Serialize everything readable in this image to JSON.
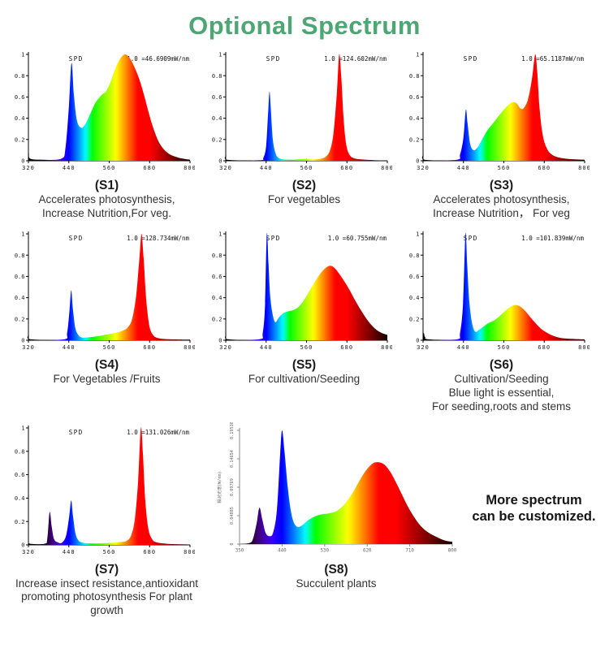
{
  "title": "Optional Spectrum",
  "title_color": "#4da673",
  "more_text": {
    "line1": "More spectrum",
    "line2": "can be customized."
  },
  "chart_data": [
    {
      "id": "S1",
      "type": "area",
      "spd_label": "SPD",
      "scale_label": "1.0 =46.6909mW/nm",
      "xlabel": "",
      "ylabel": "",
      "xlim": [
        320,
        800
      ],
      "ylim": [
        0,
        1
      ],
      "xticks": [
        320,
        440,
        560,
        680,
        800
      ],
      "yticks": [
        0,
        0.2,
        0.4,
        0.6,
        0.8,
        1
      ],
      "ytick_labels": [
        "0",
        "0.2",
        "0.4",
        "0.6",
        "0.8",
        "1"
      ],
      "points": [
        [
          320,
          0
        ],
        [
          322,
          0.07
        ],
        [
          325,
          0.02
        ],
        [
          360,
          0.01
        ],
        [
          418,
          0.02
        ],
        [
          430,
          0.12
        ],
        [
          440,
          0.5
        ],
        [
          448,
          0.92
        ],
        [
          455,
          0.62
        ],
        [
          464,
          0.38
        ],
        [
          477,
          0.31
        ],
        [
          490,
          0.35
        ],
        [
          505,
          0.45
        ],
        [
          520,
          0.55
        ],
        [
          538,
          0.62
        ],
        [
          552,
          0.66
        ],
        [
          565,
          0.75
        ],
        [
          580,
          0.88
        ],
        [
          595,
          0.97
        ],
        [
          607,
          1.0
        ],
        [
          620,
          0.97
        ],
        [
          635,
          0.88
        ],
        [
          650,
          0.76
        ],
        [
          665,
          0.6
        ],
        [
          680,
          0.42
        ],
        [
          695,
          0.27
        ],
        [
          712,
          0.15
        ],
        [
          735,
          0.07
        ],
        [
          765,
          0.03
        ],
        [
          800,
          0.01
        ]
      ],
      "caption_title": "(S1)",
      "caption_lines": [
        "Accelerates photosynthesis,",
        "Increase Nutrition,For veg."
      ]
    },
    {
      "id": "S2",
      "type": "area",
      "spd_label": "SPD",
      "scale_label": "1.0 =124.602mW/nm",
      "xlim": [
        320,
        800
      ],
      "ylim": [
        0,
        1
      ],
      "xticks": [
        320,
        440,
        560,
        680,
        800
      ],
      "yticks": [
        0,
        0.2,
        0.4,
        0.6,
        0.8,
        1
      ],
      "ytick_labels": [
        "0",
        "0.2",
        "0.4",
        "0.6",
        "0.8",
        "1"
      ],
      "points": [
        [
          320,
          0
        ],
        [
          322,
          0.05
        ],
        [
          325,
          0.01
        ],
        [
          420,
          0.005
        ],
        [
          432,
          0.03
        ],
        [
          440,
          0.14
        ],
        [
          446,
          0.45
        ],
        [
          450,
          0.65
        ],
        [
          454,
          0.48
        ],
        [
          460,
          0.2
        ],
        [
          468,
          0.07
        ],
        [
          478,
          0.025
        ],
        [
          495,
          0.012
        ],
        [
          520,
          0.01
        ],
        [
          545,
          0.015
        ],
        [
          560,
          0.02
        ],
        [
          572,
          0.012
        ],
        [
          590,
          0.015
        ],
        [
          605,
          0.02
        ],
        [
          618,
          0.04
        ],
        [
          630,
          0.1
        ],
        [
          640,
          0.26
        ],
        [
          650,
          0.63
        ],
        [
          657,
          1.0
        ],
        [
          663,
          0.8
        ],
        [
          670,
          0.4
        ],
        [
          678,
          0.15
        ],
        [
          688,
          0.055
        ],
        [
          700,
          0.025
        ],
        [
          725,
          0.012
        ],
        [
          760,
          0.006
        ],
        [
          800,
          0.003
        ]
      ],
      "caption_title": "(S2)",
      "caption_lines": [
        "For vegetables"
      ]
    },
    {
      "id": "S3",
      "type": "area",
      "spd_label": "SPD",
      "scale_label": "1.0 =65.1187mW/nm",
      "xlim": [
        320,
        800
      ],
      "ylim": [
        0,
        1
      ],
      "xticks": [
        320,
        440,
        560,
        680,
        800
      ],
      "yticks": [
        0,
        0.2,
        0.4,
        0.6,
        0.8,
        1
      ],
      "ytick_labels": [
        "0",
        "0.2",
        "0.4",
        "0.6",
        "0.8",
        "1"
      ],
      "points": [
        [
          320,
          0
        ],
        [
          322,
          0.06
        ],
        [
          325,
          0.01
        ],
        [
          420,
          0.01
        ],
        [
          430,
          0.06
        ],
        [
          440,
          0.22
        ],
        [
          447,
          0.48
        ],
        [
          452,
          0.36
        ],
        [
          460,
          0.16
        ],
        [
          470,
          0.1
        ],
        [
          483,
          0.13
        ],
        [
          497,
          0.21
        ],
        [
          512,
          0.29
        ],
        [
          527,
          0.35
        ],
        [
          542,
          0.41
        ],
        [
          557,
          0.47
        ],
        [
          572,
          0.52
        ],
        [
          586,
          0.55
        ],
        [
          598,
          0.54
        ],
        [
          610,
          0.49
        ],
        [
          620,
          0.5
        ],
        [
          632,
          0.58
        ],
        [
          644,
          0.78
        ],
        [
          653,
          1.0
        ],
        [
          659,
          0.85
        ],
        [
          666,
          0.5
        ],
        [
          675,
          0.25
        ],
        [
          687,
          0.12
        ],
        [
          702,
          0.06
        ],
        [
          725,
          0.03
        ],
        [
          760,
          0.015
        ],
        [
          800,
          0.01
        ]
      ],
      "caption_title": "(S3)",
      "caption_lines": [
        "Accelerates photosynthesis,",
        "Increase Nutrition， For veg"
      ]
    },
    {
      "id": "S4",
      "type": "area",
      "spd_label": "SPD",
      "scale_label": "1.0 =128.734mW/nm",
      "xlim": [
        320,
        800
      ],
      "ylim": [
        0,
        1
      ],
      "xticks": [
        320,
        440,
        560,
        680,
        800
      ],
      "yticks": [
        0,
        0.2,
        0.4,
        0.6,
        0.8,
        1
      ],
      "ytick_labels": [
        "0",
        "0.2",
        "0.4",
        "0.6",
        "0.8",
        "1"
      ],
      "points": [
        [
          320,
          0
        ],
        [
          322,
          0.05
        ],
        [
          325,
          0.01
        ],
        [
          425,
          0.008
        ],
        [
          435,
          0.07
        ],
        [
          442,
          0.28
        ],
        [
          447,
          0.47
        ],
        [
          452,
          0.3
        ],
        [
          459,
          0.12
        ],
        [
          468,
          0.05
        ],
        [
          480,
          0.025
        ],
        [
          505,
          0.03
        ],
        [
          530,
          0.04
        ],
        [
          555,
          0.055
        ],
        [
          580,
          0.07
        ],
        [
          600,
          0.09
        ],
        [
          615,
          0.12
        ],
        [
          628,
          0.2
        ],
        [
          640,
          0.42
        ],
        [
          650,
          0.78
        ],
        [
          656,
          1.0
        ],
        [
          662,
          0.78
        ],
        [
          670,
          0.38
        ],
        [
          679,
          0.14
        ],
        [
          690,
          0.05
        ],
        [
          705,
          0.02
        ],
        [
          735,
          0.01
        ],
        [
          800,
          0.005
        ]
      ],
      "caption_title": "(S4)",
      "caption_lines": [
        "For Vegetables /Fruits"
      ]
    },
    {
      "id": "S5",
      "type": "area",
      "spd_label": "SPD",
      "scale_label": "1.0 =60.755mW/nm",
      "xlim": [
        320,
        800
      ],
      "ylim": [
        0,
        1
      ],
      "xticks": [
        320,
        440,
        560,
        680,
        800
      ],
      "yticks": [
        0,
        0.2,
        0.4,
        0.6,
        0.8,
        1
      ],
      "ytick_labels": [
        "0",
        "0.2",
        "0.4",
        "0.6",
        "0.8",
        "1"
      ],
      "points": [
        [
          320,
          0
        ],
        [
          322,
          0.05
        ],
        [
          326,
          0.01
        ],
        [
          420,
          0.01
        ],
        [
          430,
          0.07
        ],
        [
          437,
          0.35
        ],
        [
          442,
          1.0
        ],
        [
          447,
          0.72
        ],
        [
          452,
          0.42
        ],
        [
          459,
          0.25
        ],
        [
          467,
          0.17
        ],
        [
          477,
          0.21
        ],
        [
          489,
          0.25
        ],
        [
          503,
          0.27
        ],
        [
          518,
          0.28
        ],
        [
          535,
          0.31
        ],
        [
          553,
          0.38
        ],
        [
          570,
          0.47
        ],
        [
          587,
          0.56
        ],
        [
          602,
          0.63
        ],
        [
          617,
          0.68
        ],
        [
          630,
          0.7
        ],
        [
          643,
          0.68
        ],
        [
          658,
          0.62
        ],
        [
          673,
          0.55
        ],
        [
          690,
          0.46
        ],
        [
          707,
          0.36
        ],
        [
          724,
          0.27
        ],
        [
          743,
          0.18
        ],
        [
          763,
          0.11
        ],
        [
          782,
          0.07
        ],
        [
          800,
          0.05
        ]
      ],
      "caption_title": "(S5)",
      "caption_lines": [
        "For cultivation/Seeding"
      ]
    },
    {
      "id": "S6",
      "type": "area",
      "spd_label": "SPD",
      "scale_label": "1.0 =101.839mW/nm",
      "xlim": [
        320,
        800
      ],
      "ylim": [
        0,
        1
      ],
      "xticks": [
        320,
        440,
        560,
        680,
        800
      ],
      "yticks": [
        0,
        0.2,
        0.4,
        0.6,
        0.8,
        1
      ],
      "ytick_labels": [
        "0",
        "0.2",
        "0.4",
        "0.6",
        "0.8",
        "1"
      ],
      "points": [
        [
          320,
          0
        ],
        [
          322,
          0.07
        ],
        [
          326,
          0.02
        ],
        [
          329,
          0.04
        ],
        [
          333,
          0.01
        ],
        [
          420,
          0.008
        ],
        [
          430,
          0.07
        ],
        [
          439,
          0.35
        ],
        [
          446,
          1.0
        ],
        [
          451,
          0.72
        ],
        [
          457,
          0.38
        ],
        [
          465,
          0.17
        ],
        [
          475,
          0.08
        ],
        [
          487,
          0.1
        ],
        [
          500,
          0.13
        ],
        [
          514,
          0.16
        ],
        [
          528,
          0.18
        ],
        [
          545,
          0.22
        ],
        [
          562,
          0.27
        ],
        [
          578,
          0.31
        ],
        [
          593,
          0.33
        ],
        [
          607,
          0.32
        ],
        [
          622,
          0.28
        ],
        [
          638,
          0.22
        ],
        [
          654,
          0.16
        ],
        [
          670,
          0.11
        ],
        [
          688,
          0.07
        ],
        [
          708,
          0.04
        ],
        [
          732,
          0.02
        ],
        [
          765,
          0.012
        ],
        [
          800,
          0.008
        ]
      ],
      "caption_title": "(S6)",
      "caption_lines": [
        "Cultivation/Seeding",
        "Blue light is essential,",
        "For seeding,roots and stems"
      ]
    },
    {
      "id": "S7",
      "type": "area",
      "spd_label": "SPD",
      "scale_label": "1.0 =131.026mW/nm",
      "xlim": [
        320,
        800
      ],
      "ylim": [
        0,
        1
      ],
      "xticks": [
        320,
        440,
        560,
        680,
        800
      ],
      "yticks": [
        0,
        0.2,
        0.4,
        0.6,
        0.8,
        1
      ],
      "ytick_labels": [
        "0",
        "0.2",
        "0.4",
        "0.6",
        "0.8",
        "1"
      ],
      "points": [
        [
          320,
          0.004
        ],
        [
          322,
          0.03
        ],
        [
          325,
          0.01
        ],
        [
          368,
          0.01
        ],
        [
          376,
          0.05
        ],
        [
          383,
          0.28
        ],
        [
          389,
          0.16
        ],
        [
          396,
          0.05
        ],
        [
          408,
          0.02
        ],
        [
          420,
          0.02
        ],
        [
          432,
          0.08
        ],
        [
          441,
          0.24
        ],
        [
          447,
          0.38
        ],
        [
          452,
          0.26
        ],
        [
          459,
          0.11
        ],
        [
          468,
          0.04
        ],
        [
          482,
          0.018
        ],
        [
          505,
          0.012
        ],
        [
          530,
          0.012
        ],
        [
          555,
          0.015
        ],
        [
          578,
          0.02
        ],
        [
          598,
          0.025
        ],
        [
          612,
          0.035
        ],
        [
          625,
          0.08
        ],
        [
          636,
          0.22
        ],
        [
          646,
          0.55
        ],
        [
          654,
          1.0
        ],
        [
          660,
          0.78
        ],
        [
          667,
          0.38
        ],
        [
          676,
          0.14
        ],
        [
          687,
          0.05
        ],
        [
          700,
          0.022
        ],
        [
          730,
          0.01
        ],
        [
          770,
          0.005
        ],
        [
          800,
          0.003
        ]
      ],
      "caption_title": "(S7)",
      "caption_lines": [
        "Increase insect resistance,antioxidant",
        "promoting photosynthesis For plant growth"
      ]
    },
    {
      "id": "S8",
      "type": "area",
      "ylabel": "相对光谱(W/nm)",
      "ytick_rotated": true,
      "axis_color": "#8a8a8a",
      "tick_color": "#666666",
      "xlim": [
        350,
        800
      ],
      "ylim": [
        0,
        0.19538
      ],
      "xticks": [
        350,
        440,
        530,
        620,
        710,
        800
      ],
      "yticks": [
        0,
        0.25,
        0.5,
        0.75,
        1
      ],
      "ytick_labels": [
        "0",
        "0.04885",
        "0.09769",
        "0.14654",
        "0.19538"
      ],
      "points": [
        [
          350,
          0
        ],
        [
          370,
          0.008
        ],
        [
          378,
          0.04
        ],
        [
          386,
          0.18
        ],
        [
          392,
          0.32
        ],
        [
          398,
          0.22
        ],
        [
          405,
          0.1
        ],
        [
          413,
          0.07
        ],
        [
          421,
          0.1
        ],
        [
          429,
          0.3
        ],
        [
          436,
          0.8
        ],
        [
          440,
          1.0
        ],
        [
          445,
          0.82
        ],
        [
          452,
          0.5
        ],
        [
          459,
          0.28
        ],
        [
          466,
          0.18
        ],
        [
          474,
          0.15
        ],
        [
          484,
          0.17
        ],
        [
          495,
          0.21
        ],
        [
          508,
          0.24
        ],
        [
          522,
          0.26
        ],
        [
          538,
          0.27
        ],
        [
          555,
          0.29
        ],
        [
          572,
          0.35
        ],
        [
          589,
          0.45
        ],
        [
          604,
          0.56
        ],
        [
          618,
          0.65
        ],
        [
          632,
          0.71
        ],
        [
          644,
          0.72
        ],
        [
          656,
          0.7
        ],
        [
          668,
          0.64
        ],
        [
          680,
          0.55
        ],
        [
          693,
          0.44
        ],
        [
          706,
          0.33
        ],
        [
          719,
          0.24
        ],
        [
          733,
          0.16
        ],
        [
          750,
          0.1
        ],
        [
          768,
          0.06
        ],
        [
          785,
          0.03
        ],
        [
          800,
          0.02
        ]
      ],
      "caption_title": "(S8)",
      "caption_lines": [
        "Succulent plants"
      ]
    }
  ]
}
